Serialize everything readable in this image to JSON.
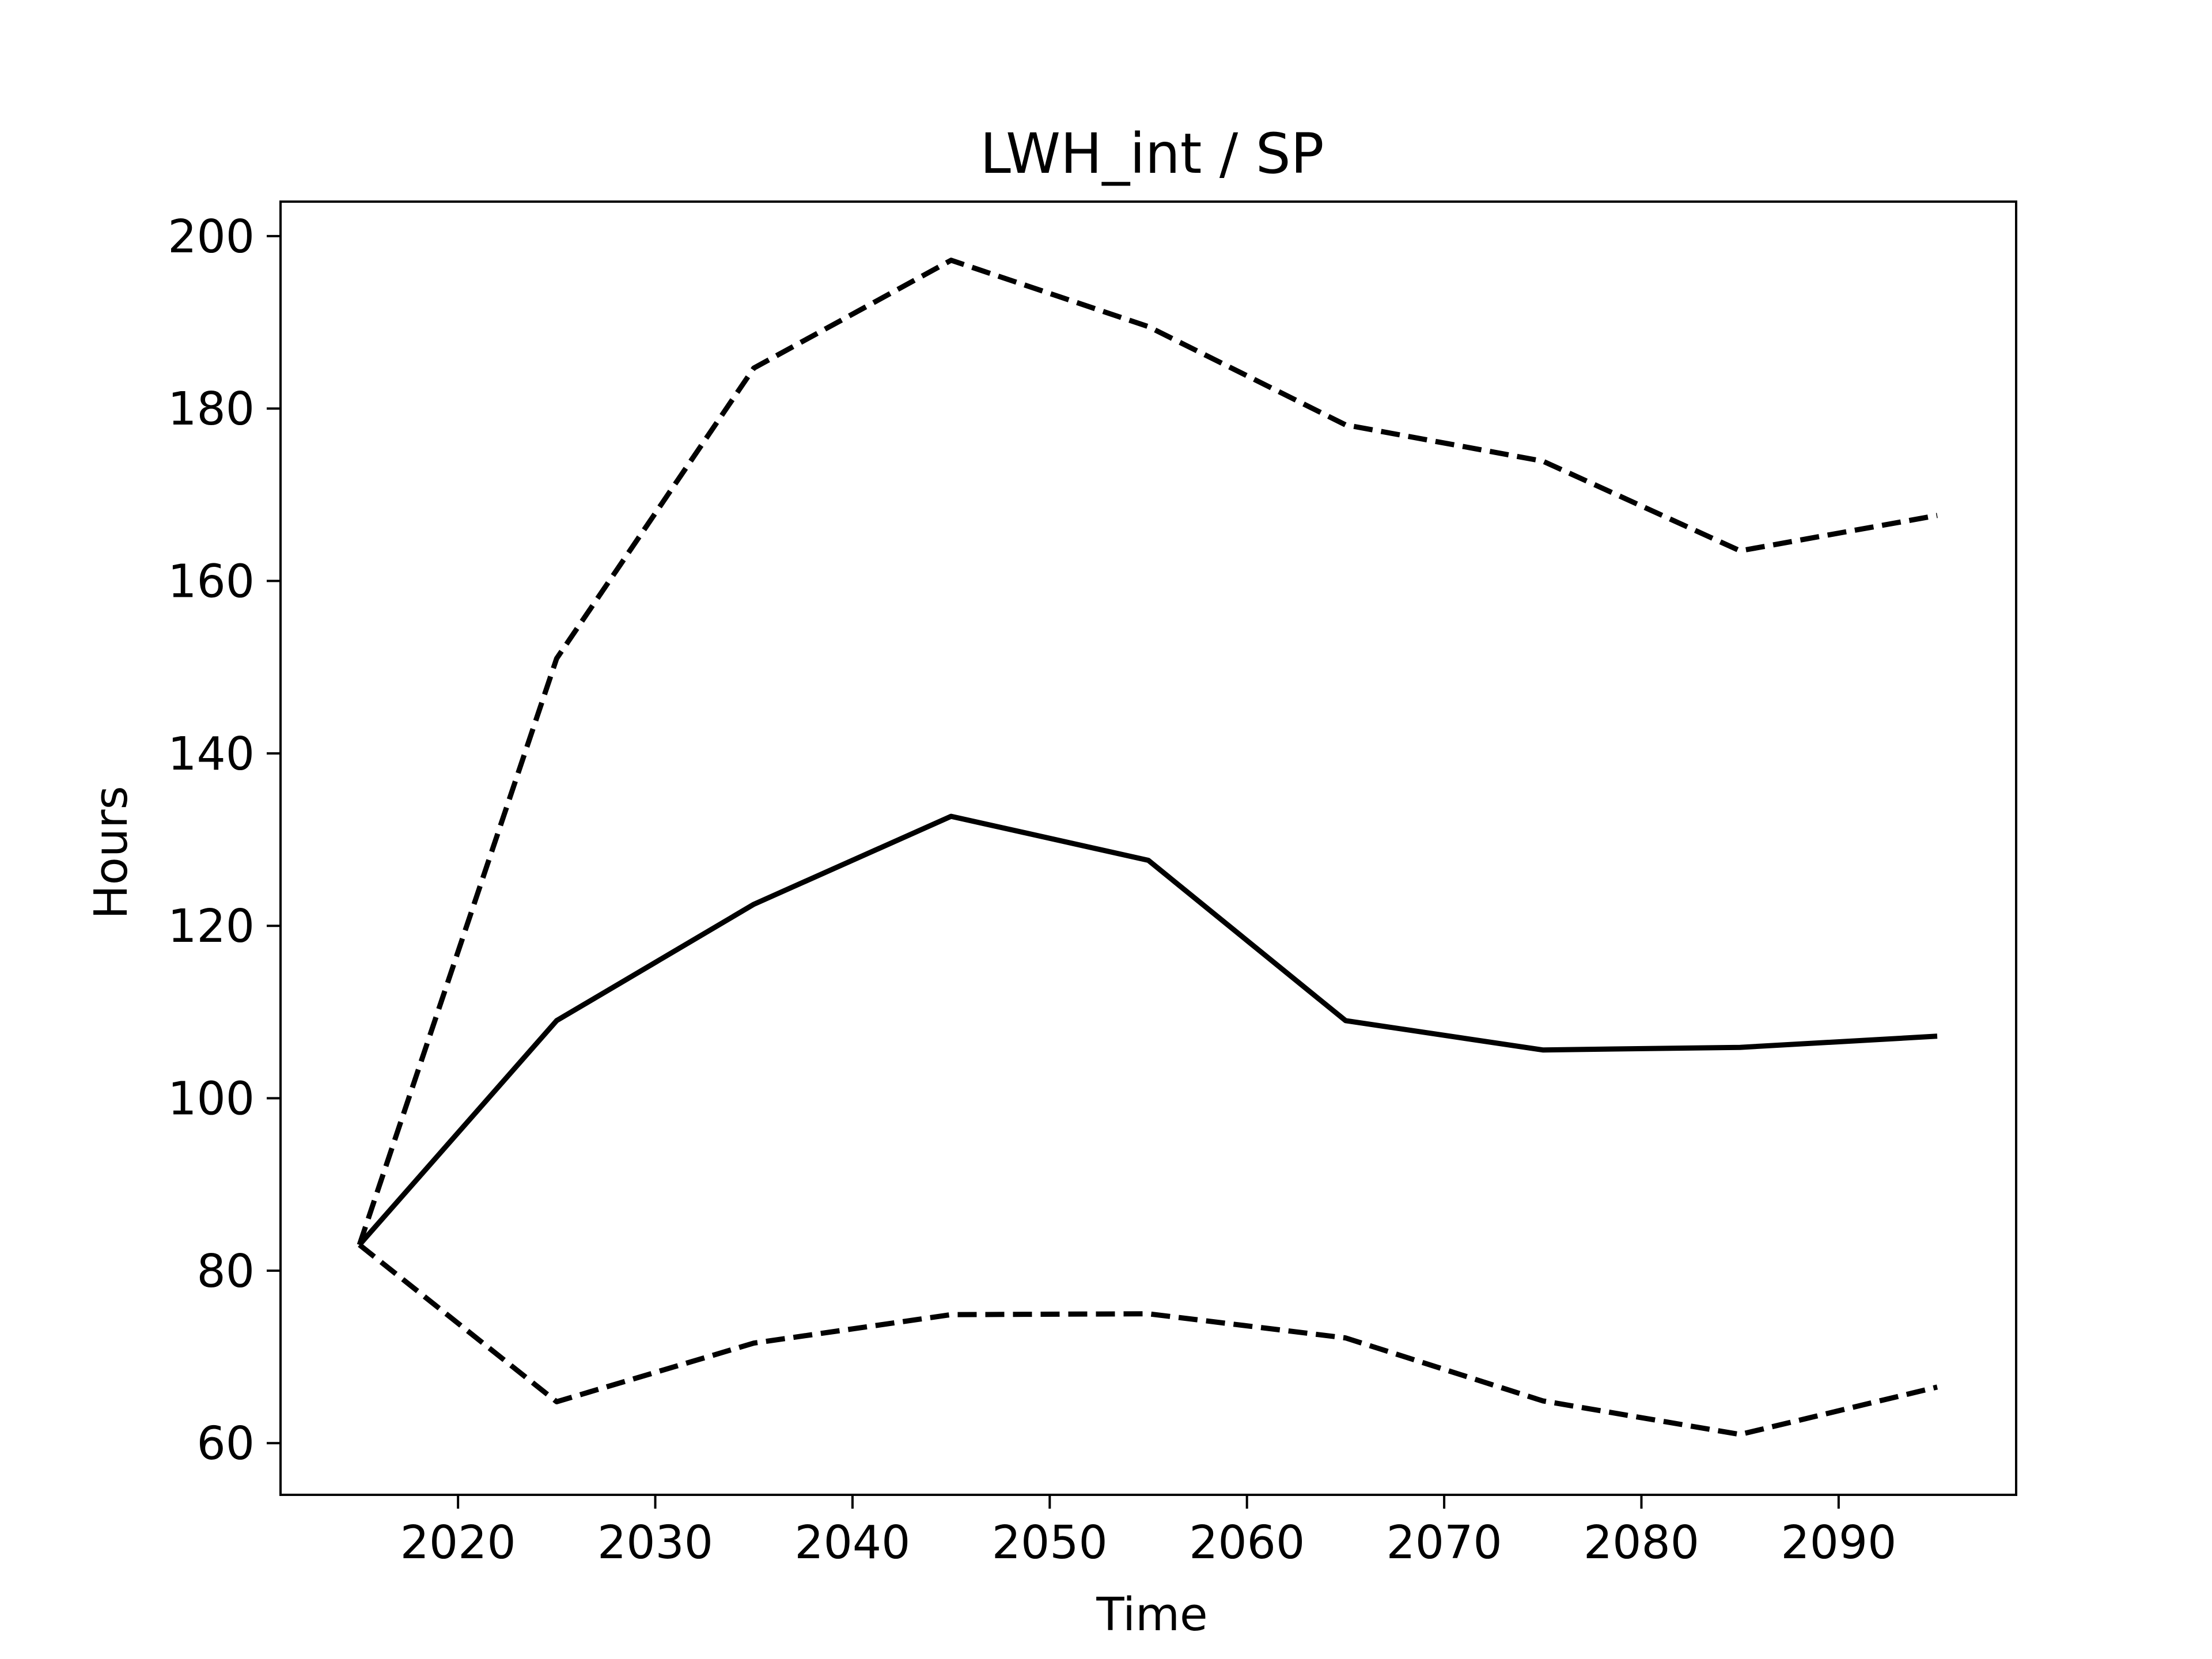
{
  "chart_data": {
    "type": "line",
    "title": "LWH_int / SP",
    "xlabel": "Time",
    "ylabel": "Hours",
    "xlim": [
      2011,
      2099
    ],
    "ylim": [
      54,
      204
    ],
    "xticks": [
      2020,
      2030,
      2040,
      2050,
      2060,
      2070,
      2080,
      2090
    ],
    "yticks": [
      60,
      80,
      100,
      120,
      140,
      160,
      180,
      200
    ],
    "grid": false,
    "legend": "none",
    "x": [
      2015,
      2025,
      2035,
      2045,
      2055,
      2065,
      2075,
      2085,
      2095
    ],
    "series": [
      {
        "style": "solid",
        "color": "#000000",
        "values": [
          83,
          109,
          122.5,
          132.7,
          127.6,
          109,
          105.6,
          105.9,
          107.2
        ]
      },
      {
        "style": "dashed",
        "color": "#000000",
        "values": [
          83,
          151,
          184.7,
          197.2,
          189.5,
          178.1,
          173.9,
          163.5,
          167.6
        ]
      },
      {
        "style": "dashed",
        "color": "#000000",
        "values": [
          83,
          64.8,
          71.6,
          74.9,
          75,
          72.2,
          64.9,
          61,
          66.5
        ]
      }
    ]
  }
}
